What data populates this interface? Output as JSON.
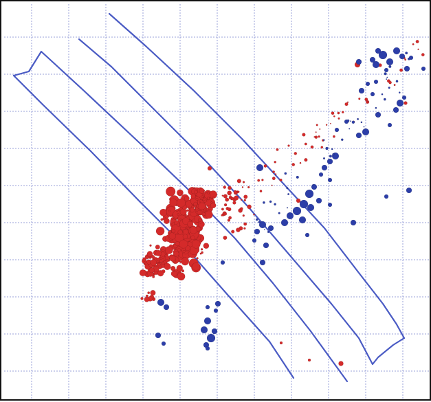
{
  "viewer": {
    "grid_color": "#9aa0d8",
    "outline_color": "#4a5bc4",
    "background": "#ffffff",
    "frame_color": "#111111"
  },
  "clusters": [
    {
      "name": "red-cluster",
      "color": "#d42a2a",
      "icon": "red-sphere-cluster"
    },
    {
      "name": "blue-cluster",
      "color": "#2c3ea8",
      "icon": "blue-sphere-cluster"
    }
  ]
}
